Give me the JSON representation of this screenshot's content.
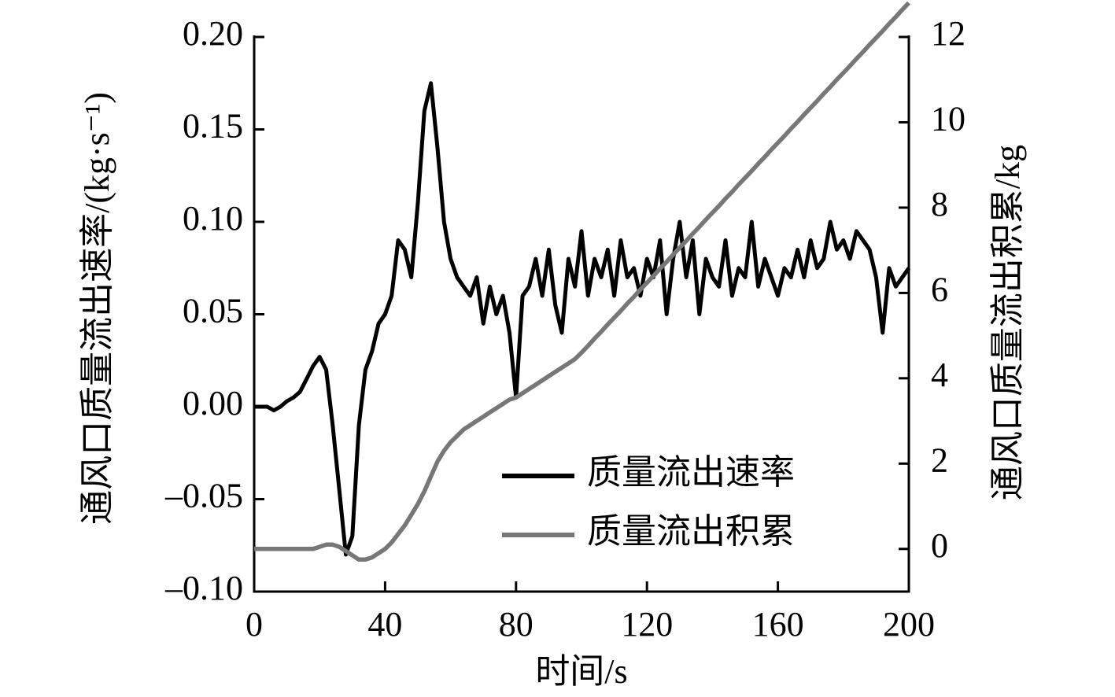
{
  "chart_data": {
    "type": "line",
    "xlabel": "时间/s",
    "ylabel": "通风口质量流出速率/(kg·s⁻¹)",
    "y2label": "通风口质量流出积累/kg",
    "xlim": [
      0,
      200
    ],
    "xticks": [
      0,
      40,
      80,
      120,
      160,
      200
    ],
    "ylim": [
      -0.1,
      0.2
    ],
    "yticks": [
      {
        "value": -0.1,
        "label": "–0.10"
      },
      {
        "value": -0.05,
        "label": "–0.05"
      },
      {
        "value": 0,
        "label": "0.00"
      },
      {
        "value": 0.05,
        "label": "0.05"
      },
      {
        "value": 0.1,
        "label": "0.10"
      },
      {
        "value": 0.15,
        "label": "0.15"
      },
      {
        "value": 0.2,
        "label": "0.20"
      }
    ],
    "y2lim": [
      -1,
      12
    ],
    "y2ticks": [
      0,
      2,
      4,
      6,
      8,
      10,
      12
    ],
    "legend": "lower right",
    "x": [
      0,
      2,
      4,
      6,
      8,
      10,
      12,
      14,
      16,
      18,
      20,
      22,
      24,
      26,
      28,
      30,
      32,
      34,
      36,
      38,
      40,
      42,
      44,
      46,
      48,
      50,
      52,
      54,
      56,
      58,
      60,
      62,
      64,
      66,
      68,
      70,
      72,
      74,
      76,
      78,
      80,
      82,
      84,
      86,
      88,
      90,
      92,
      94,
      96,
      98,
      100,
      102,
      104,
      106,
      108,
      110,
      112,
      114,
      116,
      118,
      120,
      122,
      124,
      126,
      128,
      130,
      132,
      134,
      136,
      138,
      140,
      142,
      144,
      146,
      148,
      150,
      152,
      154,
      156,
      158,
      160,
      162,
      164,
      166,
      168,
      170,
      172,
      174,
      176,
      178,
      180,
      182,
      184,
      186,
      188,
      190,
      192,
      194,
      196,
      198,
      200
    ],
    "series": [
      {
        "name": "质量流出速率",
        "color": "#000000",
        "axis": "y",
        "values": [
          0,
          0,
          0,
          -0.002,
          0,
          0.003,
          0.005,
          0.008,
          0.015,
          0.022,
          0.027,
          0.02,
          -0.01,
          -0.045,
          -0.08,
          -0.07,
          -0.01,
          0.02,
          0.03,
          0.045,
          0.05,
          0.06,
          0.09,
          0.085,
          0.07,
          0.11,
          0.16,
          0.175,
          0.14,
          0.1,
          0.08,
          0.07,
          0.065,
          0.06,
          0.07,
          0.045,
          0.065,
          0.05,
          0.06,
          0.04,
          0.005,
          0.06,
          0.065,
          0.08,
          0.06,
          0.085,
          0.055,
          0.04,
          0.08,
          0.065,
          0.095,
          0.06,
          0.08,
          0.07,
          0.085,
          0.06,
          0.09,
          0.07,
          0.075,
          0.06,
          0.08,
          0.07,
          0.09,
          0.05,
          0.08,
          0.1,
          0.07,
          0.09,
          0.05,
          0.08,
          0.07,
          0.065,
          0.09,
          0.06,
          0.075,
          0.07,
          0.1,
          0.065,
          0.08,
          0.07,
          0.06,
          0.075,
          0.07,
          0.085,
          0.07,
          0.09,
          0.075,
          0.08,
          0.1,
          0.085,
          0.09,
          0.08,
          0.095,
          0.09,
          0.085,
          0.07,
          0.04,
          0.075,
          0.065,
          0.07,
          0.075
        ]
      },
      {
        "name": "质量流出积累",
        "color": "#777777",
        "axis": "y2",
        "values": [
          0,
          0,
          0,
          0,
          0,
          0,
          0,
          0,
          0,
          0,
          0.05,
          0.1,
          0.1,
          0.05,
          -0.05,
          -0.15,
          -0.25,
          -0.25,
          -0.2,
          -0.1,
          0,
          0.15,
          0.35,
          0.55,
          0.8,
          1.05,
          1.35,
          1.7,
          2.05,
          2.3,
          2.5,
          2.65,
          2.8,
          2.9,
          3.0,
          3.1,
          3.2,
          3.3,
          3.4,
          3.5,
          3.55,
          3.65,
          3.75,
          3.85,
          3.95,
          4.05,
          4.15,
          4.25,
          4.35,
          4.45,
          4.6,
          4.76,
          4.93,
          5.09,
          5.26,
          5.42,
          5.58,
          5.75,
          5.91,
          6.08,
          6.24,
          6.4,
          6.57,
          6.73,
          6.9,
          7.06,
          7.22,
          7.39,
          7.55,
          7.72,
          7.88,
          8.04,
          8.21,
          8.37,
          8.54,
          8.7,
          8.86,
          9.03,
          9.19,
          9.36,
          9.52,
          9.68,
          9.85,
          10.01,
          10.18,
          10.34,
          10.5,
          10.67,
          10.83,
          11.0,
          11.16,
          11.32,
          11.49,
          11.65,
          11.82,
          11.98,
          12.14,
          12.31,
          12.47,
          12.64,
          12.8
        ]
      }
    ]
  }
}
